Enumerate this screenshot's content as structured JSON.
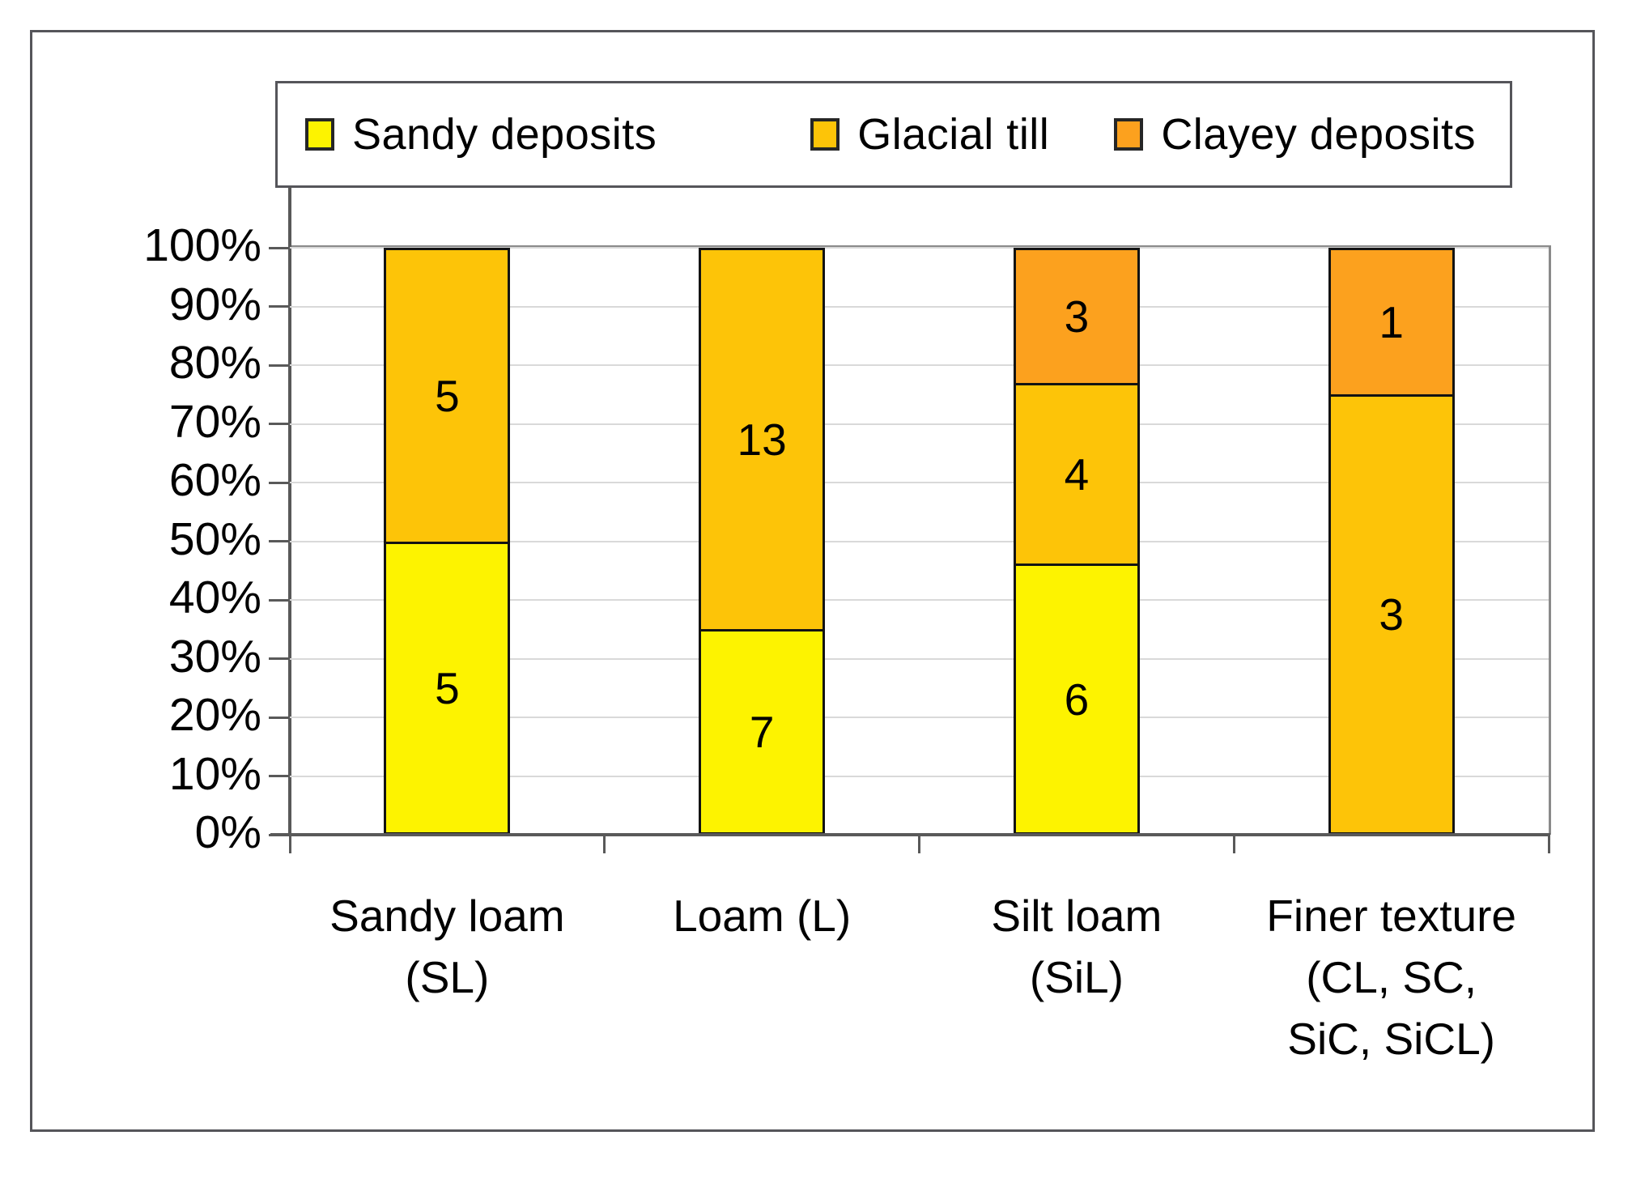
{
  "chart_data": {
    "type": "bar",
    "variant": "100-percent-stacked-column",
    "title": "",
    "categories": [
      {
        "id": "sandy-loam",
        "label_lines": [
          "Sandy loam",
          "(SL)"
        ]
      },
      {
        "id": "loam",
        "label_lines": [
          "Loam (L)"
        ]
      },
      {
        "id": "silt-loam",
        "label_lines": [
          "Silt loam",
          "(SiL)"
        ]
      },
      {
        "id": "finer-texture",
        "label_lines": [
          "Finer texture",
          "(CL, SC,",
          "SiC, SiCL)"
        ]
      }
    ],
    "series": [
      {
        "name": "Sandy deposits",
        "color": "#fdf300",
        "values": [
          5,
          7,
          6,
          0
        ]
      },
      {
        "name": "Glacial till",
        "color": "#fdc408",
        "values": [
          5,
          13,
          4,
          3
        ]
      },
      {
        "name": "Clayey deposits",
        "color": "#fca11e",
        "values": [
          0,
          0,
          3,
          1
        ]
      }
    ],
    "segment_labels": [
      [
        "5",
        "7",
        "6",
        ""
      ],
      [
        "5",
        "13",
        "4",
        "3"
      ],
      [
        "",
        "",
        "3",
        "1"
      ]
    ],
    "y_axis": {
      "tick_labels": [
        "0%",
        "10%",
        "20%",
        "30%",
        "40%",
        "50%",
        "60%",
        "70%",
        "80%",
        "90%",
        "100%"
      ],
      "min": 0,
      "max": 100,
      "step": 10
    },
    "legend_position": "top",
    "grid": true
  },
  "styles": {
    "axis_color": "#595959",
    "gridline_color": "#d9d9d9",
    "plot_border_color": "#8a8a8a",
    "frame_border_color": "#55555a",
    "segment_border_color": "#131313",
    "text_color": "#000000"
  }
}
